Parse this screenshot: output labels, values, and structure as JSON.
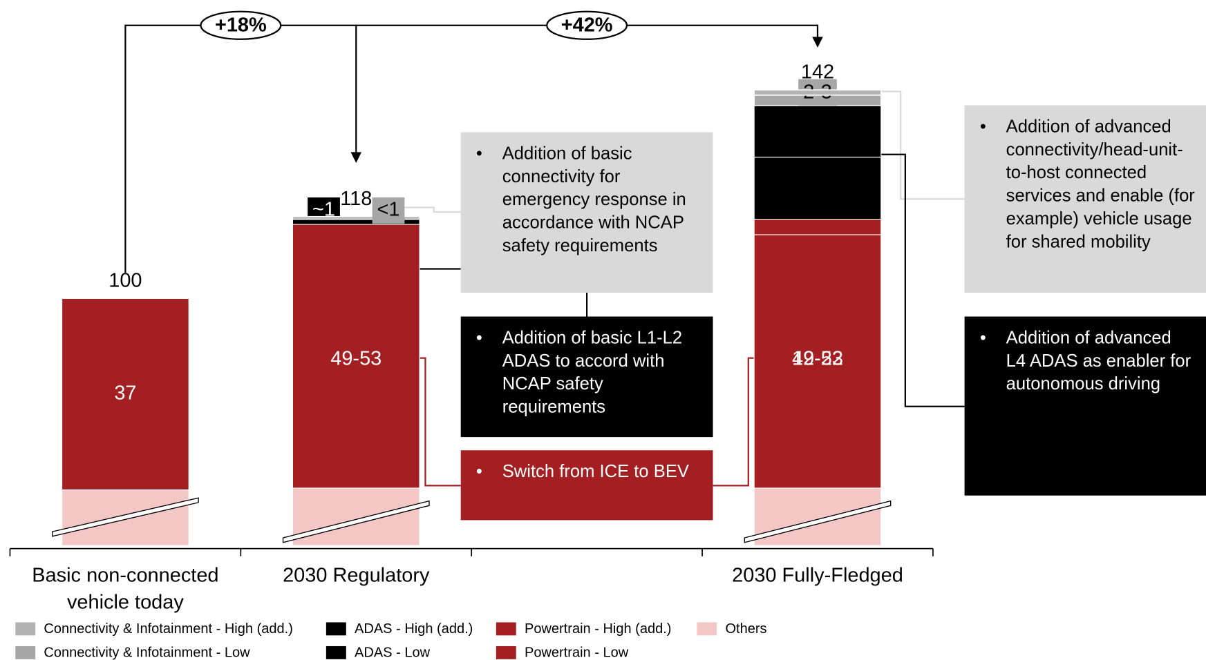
{
  "chart_data": {
    "type": "bar",
    "categories": [
      "Basic non-connected vehicle today",
      "2030 Regulatory",
      "2030 Fully-Fledged"
    ],
    "series": [
      {
        "name": "Others",
        "color": "#f4c7c7",
        "values": [
          63,
          65,
          65
        ]
      },
      {
        "name": "Powertrain - Low",
        "color": "#a31f22",
        "values": [
          37,
          51,
          49
        ],
        "value_labels": [
          "37",
          "49-53",
          "49-53"
        ]
      },
      {
        "name": "Powertrain - High (add.)",
        "color": "#a31f22",
        "values": [
          null,
          null,
          3
        ]
      },
      {
        "name": "ADAS - Low",
        "color": "#000000",
        "values": [
          null,
          1,
          12
        ],
        "value_labels": [
          null,
          "~1",
          "12-22"
        ]
      },
      {
        "name": "ADAS - High (add.)",
        "color": "#000000",
        "values": [
          null,
          null,
          10
        ]
      },
      {
        "name": "Connectivity & Infotainment - Low",
        "color": "#a6a6a6",
        "values": [
          null,
          0.5,
          2
        ],
        "value_labels": [
          null,
          "<1",
          "2-3"
        ]
      },
      {
        "name": "Connectivity & Infotainment - High (add.)",
        "color": "#b3b3b3",
        "values": [
          null,
          null,
          1
        ]
      }
    ],
    "totals": [
      100,
      118,
      142
    ],
    "growth_labels": [
      "+18%",
      "+42%"
    ],
    "callouts": [
      "Addition of basic connectivity for emergency response in accordance with NCAP safety requirements",
      "Addition of basic L1-L2 ADAS to accord with NCAP safety requirements",
      "Switch from ICE to BEV",
      "Addition of advanced connectivity/head-unit-to-host connected services and enable (for example) vehicle usage for shared mobility",
      "Addition of advanced L4 ADAS as enabler for autonomous driving"
    ],
    "axis_break": true
  }
}
